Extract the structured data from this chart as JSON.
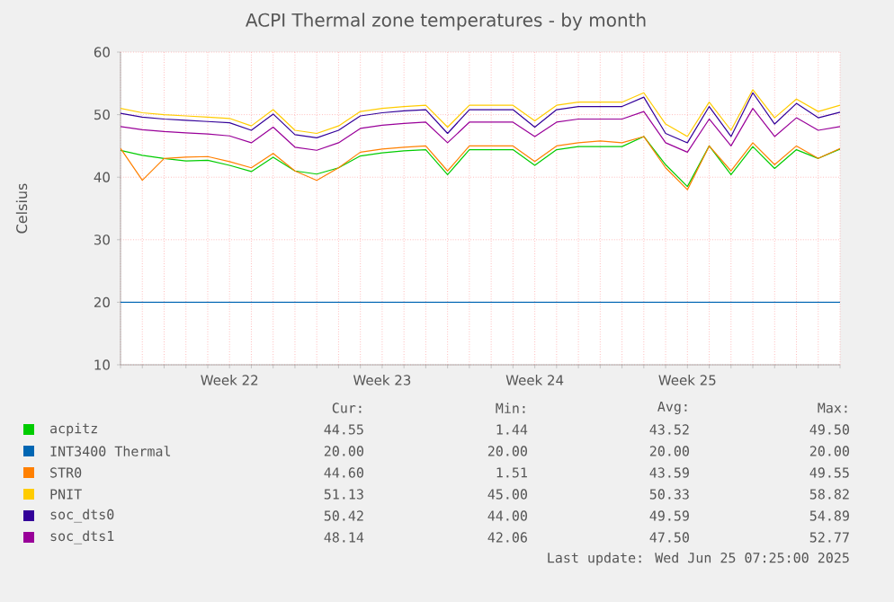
{
  "chart_data": {
    "type": "line",
    "title": "ACPI Thermal zone temperatures - by month",
    "ylabel": "Celsius",
    "categories": [
      null,
      null,
      null,
      null,
      null,
      "Week 22",
      null,
      null,
      null,
      null,
      null,
      null,
      "Week 23",
      null,
      null,
      null,
      null,
      null,
      null,
      "Week 24",
      null,
      null,
      null,
      null,
      null,
      null,
      "Week 25",
      null,
      null,
      null,
      null,
      null,
      null,
      null
    ],
    "ylim": [
      10,
      60
    ],
    "yticks": [
      10,
      20,
      30,
      40,
      50,
      60
    ],
    "grid": true,
    "legend": "bottom",
    "marker": "none",
    "line_style": "solid",
    "series": [
      {
        "name": "acpitz",
        "color": "#00cc00",
        "values": [
          44.3,
          43.5,
          43,
          42.6,
          42.7,
          41.9,
          40.9,
          43.2,
          41,
          40.5,
          41.5,
          43.4,
          43.9,
          44.2,
          44.4,
          40.4,
          44.4,
          44.4,
          44.4,
          41.9,
          44.4,
          44.9,
          44.9,
          44.9,
          46.5,
          42,
          38.5,
          45,
          40.4,
          44.9,
          41.4,
          44.4,
          43,
          44.5
        ]
      },
      {
        "name": "INT3400 Thermal",
        "color": "#0066b3",
        "values": [
          20,
          20,
          20,
          20,
          20,
          20,
          20,
          20,
          20,
          20,
          20,
          20,
          20,
          20,
          20,
          20,
          20,
          20,
          20,
          20,
          20,
          20,
          20,
          20,
          20,
          20,
          20,
          20,
          20,
          20,
          20,
          20,
          20,
          20
        ]
      },
      {
        "name": "STR0",
        "color": "#ff8000",
        "values": [
          44.6,
          39.5,
          43,
          43.2,
          43.3,
          42.5,
          41.5,
          43.8,
          41,
          39.5,
          41.5,
          44,
          44.5,
          44.8,
          45,
          41,
          45,
          45,
          45,
          42.5,
          45,
          45.5,
          45.8,
          45.5,
          46.5,
          41.5,
          38,
          45,
          41,
          45.5,
          42,
          45,
          43,
          44.6
        ]
      },
      {
        "name": "PNIT",
        "color": "#ffcc00",
        "values": [
          51,
          50.3,
          50,
          49.8,
          49.6,
          49.4,
          48.2,
          50.8,
          47.5,
          47,
          48.2,
          50.5,
          51,
          51.3,
          51.5,
          48,
          51.5,
          51.5,
          51.5,
          49,
          51.5,
          52,
          52,
          52,
          53.5,
          48.5,
          46.5,
          52,
          47.5,
          54,
          49.5,
          52.5,
          50.5,
          51.5
        ]
      },
      {
        "name": "soc_dts0",
        "color": "#330099",
        "values": [
          50.2,
          49.6,
          49.3,
          49.1,
          48.9,
          48.7,
          47.5,
          50.1,
          46.8,
          46.3,
          47.5,
          49.8,
          50.3,
          50.6,
          50.8,
          47,
          50.8,
          50.8,
          50.8,
          48,
          50.8,
          51.3,
          51.3,
          51.3,
          52.8,
          47,
          45.5,
          51.3,
          46.5,
          53.5,
          48.5,
          51.8,
          49.5,
          50.4
        ]
      },
      {
        "name": "soc_dts1",
        "color": "#990099",
        "values": [
          48.1,
          47.6,
          47.3,
          47.1,
          46.9,
          46.6,
          45.5,
          48,
          44.8,
          44.3,
          45.5,
          47.8,
          48.3,
          48.6,
          48.8,
          45.5,
          48.8,
          48.8,
          48.8,
          46.5,
          48.8,
          49.3,
          49.3,
          49.3,
          50.5,
          45.5,
          44,
          49.3,
          45,
          51,
          46.5,
          49.5,
          47.5,
          48.1
        ]
      }
    ],
    "annotations": [
      "Cur:",
      "Min:",
      "Avg:",
      "Max:",
      "44.55",
      "1.44",
      "43.52",
      "49.50",
      "20.00",
      "20.00",
      "20.00",
      "20.00",
      "44.60",
      "1.51",
      "43.59",
      "49.55",
      "51.13",
      "45.00",
      "50.33",
      "58.82",
      "50.42",
      "44.00",
      "49.59",
      "54.89",
      "48.14",
      "42.06",
      "47.50",
      "52.77",
      "Last update: Wed Jun 25 07:25:00 2025"
    ]
  }
}
